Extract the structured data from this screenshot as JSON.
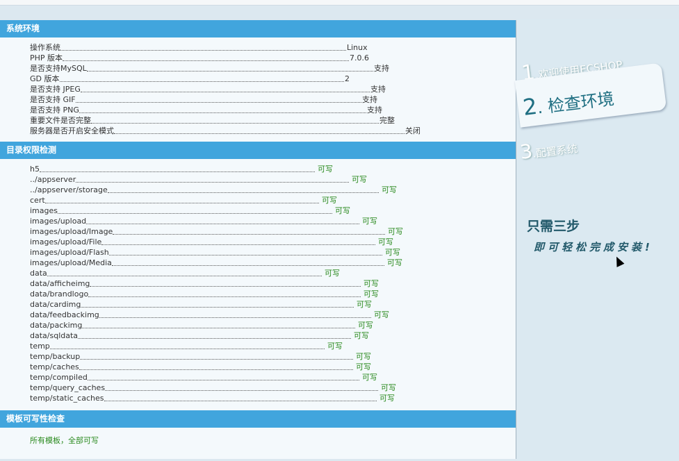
{
  "sections": {
    "system": {
      "title": "系统环境",
      "rows": [
        {
          "label": "操作系统",
          "value": "Linux"
        },
        {
          "label": "PHP 版本",
          "value": "7.0.6"
        },
        {
          "label": "是否支持MySQL",
          "value": "支持"
        },
        {
          "label": "GD 版本",
          "value": "2"
        },
        {
          "label": "是否支持 JPEG",
          "value": "支持"
        },
        {
          "label": "是否支持 GIF",
          "value": "支持"
        },
        {
          "label": "是否支持 PNG",
          "value": "支持"
        },
        {
          "label": "重要文件是否完整",
          "value": "完整"
        },
        {
          "label": "服务器是否开启安全模式",
          "value": "关闭"
        }
      ]
    },
    "dirs": {
      "title": "目录权限检测",
      "rows": [
        {
          "label": "h5",
          "value": "可写"
        },
        {
          "label": "../appserver",
          "value": "可写"
        },
        {
          "label": "../appserver/storage",
          "value": "可写"
        },
        {
          "label": "cert",
          "value": "可写"
        },
        {
          "label": "images",
          "value": "可写"
        },
        {
          "label": "images/upload",
          "value": "可写"
        },
        {
          "label": "images/upload/Image",
          "value": "可写"
        },
        {
          "label": "images/upload/File",
          "value": "可写"
        },
        {
          "label": "images/upload/Flash",
          "value": "可写"
        },
        {
          "label": "images/upload/Media",
          "value": "可写"
        },
        {
          "label": "data",
          "value": "可写"
        },
        {
          "label": "data/afficheimg",
          "value": "可写"
        },
        {
          "label": "data/brandlogo",
          "value": "可写"
        },
        {
          "label": "data/cardimg",
          "value": "可写"
        },
        {
          "label": "data/feedbackimg",
          "value": "可写"
        },
        {
          "label": "data/packimg",
          "value": "可写"
        },
        {
          "label": "data/sqldata",
          "value": "可写"
        },
        {
          "label": "temp",
          "value": "可写"
        },
        {
          "label": "temp/backup",
          "value": "可写"
        },
        {
          "label": "temp/caches",
          "value": "可写"
        },
        {
          "label": "temp/compiled",
          "value": "可写"
        },
        {
          "label": "temp/query_caches",
          "value": "可写"
        },
        {
          "label": "temp/static_caches",
          "value": "可写"
        }
      ]
    },
    "templates": {
      "title": "模板可写性检查",
      "result": "所有模板，全部可写"
    }
  },
  "steps": [
    {
      "num": "1",
      "label": "欢迎使用ECSHOP",
      "active": false
    },
    {
      "num": "2",
      "label": "检查环境",
      "active": true
    },
    {
      "num": "3",
      "label": "配置系统",
      "active": false
    }
  ],
  "slogan": {
    "line1": "只需三步",
    "line2": "即可轻松完成安装!"
  },
  "colors": {
    "header": "#41a5dd",
    "ok": "#2a8a1e",
    "sidebar": "#dbe9f1"
  }
}
